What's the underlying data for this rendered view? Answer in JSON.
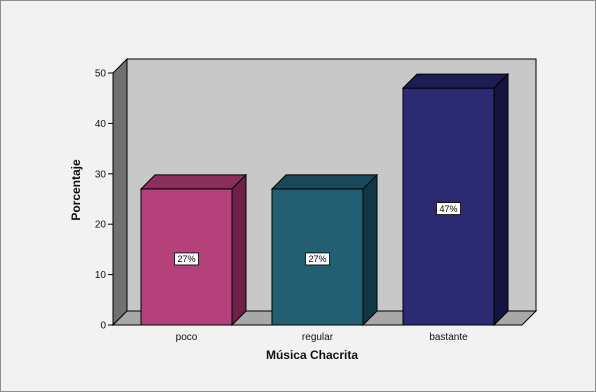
{
  "chart_data": {
    "type": "bar",
    "categories": [
      "poco",
      "regular",
      "bastante"
    ],
    "values": [
      27,
      27,
      47
    ],
    "data_labels": [
      "27%",
      "27%",
      "47%"
    ],
    "title": "",
    "xlabel": "Música Chacrita",
    "ylabel": "Porcentaje",
    "ylim": [
      0,
      50
    ],
    "yticks": [
      "0",
      "10",
      "20",
      "30",
      "40",
      "50"
    ],
    "grid": false,
    "three_d": true,
    "colors": {
      "bars": [
        "#b5417a",
        "#225f72",
        "#2b2a72"
      ],
      "bar_tops": [
        "#8a2e5c",
        "#18485a",
        "#1d1c55"
      ],
      "bar_sides": [
        "#6e2048",
        "#123744",
        "#151440"
      ],
      "plot_back": "#c8c8c8",
      "plot_floor": "#a8a8a8",
      "plot_wall": "#707070"
    }
  }
}
